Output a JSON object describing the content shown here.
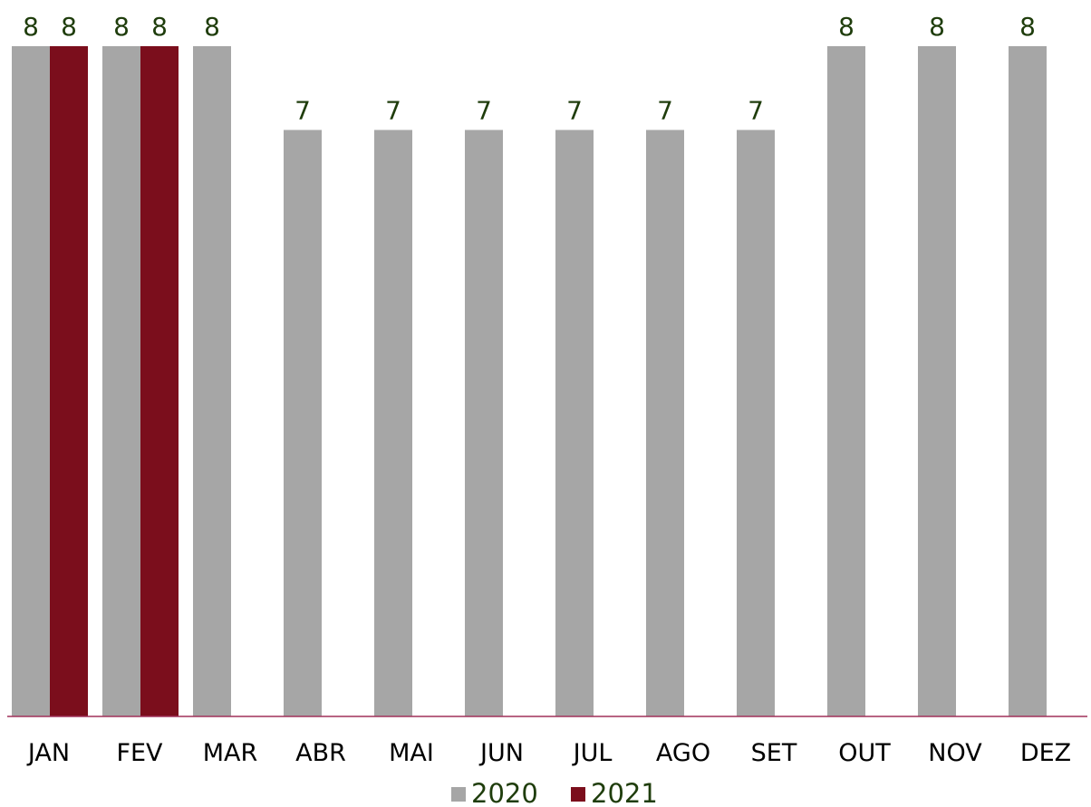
{
  "chart_data": {
    "type": "bar",
    "categories": [
      "JAN",
      "FEV",
      "MAR",
      "ABR",
      "MAI",
      "JUN",
      "JUL",
      "AGO",
      "SET",
      "OUT",
      "NOV",
      "DEZ"
    ],
    "series": [
      {
        "name": "2020",
        "values": [
          8,
          8,
          8,
          7,
          7,
          7,
          7,
          7,
          7,
          8,
          8,
          8
        ],
        "color": "#a6a6a6"
      },
      {
        "name": "2021",
        "values": [
          8,
          8,
          null,
          null,
          null,
          null,
          null,
          null,
          null,
          null,
          null,
          null
        ],
        "color": "#7b0e1c"
      }
    ],
    "title": "",
    "xlabel": "",
    "ylabel": "",
    "ylim": [
      0,
      8.5
    ],
    "grid": false,
    "legend_position": "bottom",
    "data_labels": true,
    "colors": {
      "axis_line": "#a0305a",
      "data_label": "#1f3d0c",
      "tick_label": "#000000",
      "legend_text": "#1f3d0c"
    }
  }
}
